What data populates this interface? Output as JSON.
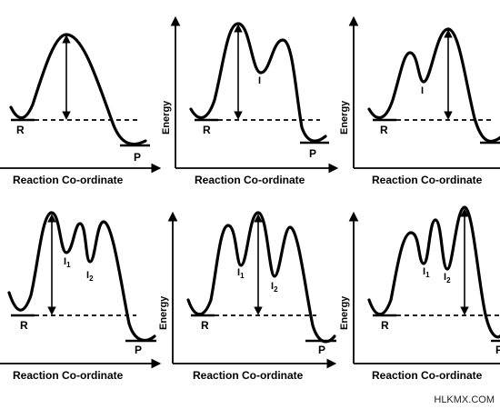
{
  "labels": {
    "xlabel": "Reaction Co-ordinate",
    "ylabel": "Energy",
    "reactant": "R",
    "product": "P",
    "intermediate": "I",
    "i1_main": "I",
    "i1_sub": "1",
    "i2_main": "I",
    "i2_sub": "2"
  },
  "credit": "HLKMX.COM",
  "colors": {
    "line": "#000000",
    "background": "#ffffff"
  },
  "panels": [
    {
      "id": "one-step",
      "intermediates": 0
    },
    {
      "id": "two-step-first-barrier-highest",
      "intermediates": 1
    },
    {
      "id": "two-step-second-barrier-highest",
      "intermediates": 1
    },
    {
      "id": "three-step-first-barrier-highest",
      "intermediates": 2
    },
    {
      "id": "three-step-second-barrier-highest",
      "intermediates": 2
    },
    {
      "id": "three-step-third-barrier-highest",
      "intermediates": 2
    }
  ]
}
